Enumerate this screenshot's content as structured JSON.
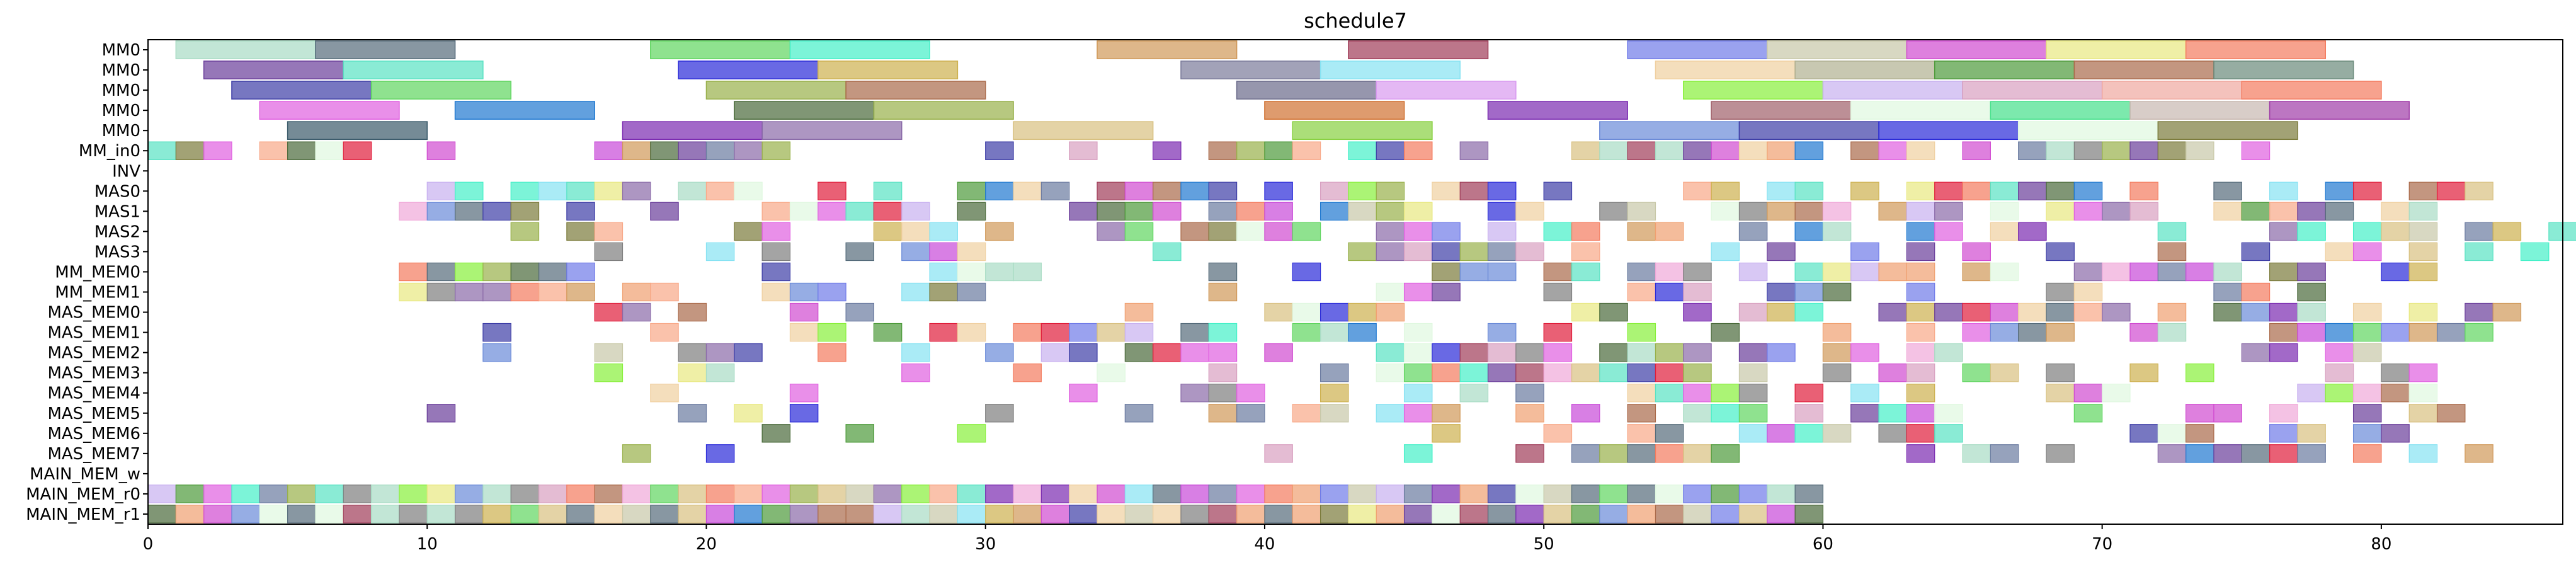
{
  "chart_data": {
    "type": "gantt",
    "title": "schedule7",
    "xlabel": "",
    "ylabel": "",
    "xlim": [
      0,
      86.5
    ],
    "xticks": [
      0,
      10,
      20,
      30,
      40,
      50,
      60,
      70,
      80
    ],
    "grid": false,
    "legend": "none",
    "rows": [
      "MM0",
      "MM0",
      "MM0",
      "MM0",
      "MM0",
      "MM_in0",
      "INV",
      "MAS0",
      "MAS1",
      "MAS2",
      "MAS3",
      "MM_MEM0",
      "MM_MEM1",
      "MAS_MEM0",
      "MAS_MEM1",
      "MAS_MEM2",
      "MAS_MEM3",
      "MAS_MEM4",
      "MAS_MEM5",
      "MAS_MEM6",
      "MAS_MEM7",
      "MAIN_MEM_w",
      "MAIN_MEM_r0",
      "MAIN_MEM_r1"
    ],
    "palette": [
      "#a8dcc4",
      "#556b7a",
      "#5fd55f",
      "#44f0c8",
      "#d09858",
      "#a03c58",
      "#6f7ae8",
      "#c8c8a8",
      "#d04ad0",
      "#e8e880",
      "#f47b5e",
      "#6a3d9a",
      "#59e2c3",
      "#2a2ad8",
      "#cdb04e",
      "#3d3da6",
      "#8a6aa8",
      "#aa6a4a",
      "#86e2f2",
      "#f0d0a0",
      "#88ef3a",
      "#4d9a3a",
      "#c8b0f0",
      "#e01c3a",
      "#f0a8d8",
      "#7e7e7e",
      "#e060e0",
      "#1f78d0",
      "#f8a888",
      "#4a6a3a",
      "#7a2ab0",
      "#e0f8e0",
      "#98b04a",
      "#f0a070",
      "#c848d8",
      "#6a8ad8",
      "#6a7aa0",
      "#d8c080",
      "#d8a0c0",
      "#7a7a3a"
    ],
    "bars": [
      {
        "row": 0,
        "start": 1,
        "dur": 5,
        "color": "#a8dcc4"
      },
      {
        "row": 0,
        "start": 6,
        "dur": 5,
        "color": "#556b7a"
      },
      {
        "row": 0,
        "start": 18,
        "dur": 5,
        "color": "#5fd55f"
      },
      {
        "row": 0,
        "start": 23,
        "dur": 5,
        "color": "#44f0c8"
      },
      {
        "row": 0,
        "start": 34,
        "dur": 5,
        "color": "#d09858"
      },
      {
        "row": 0,
        "start": 43,
        "dur": 5,
        "color": "#a03c58"
      },
      {
        "row": 0,
        "start": 53,
        "dur": 5,
        "color": "#6f7ae8"
      },
      {
        "row": 0,
        "start": 58,
        "dur": 5,
        "color": "#c8c8a8"
      },
      {
        "row": 0,
        "start": 63,
        "dur": 5,
        "color": "#d04ad0"
      },
      {
        "row": 0,
        "start": 68,
        "dur": 5,
        "color": "#e8e880"
      },
      {
        "row": 0,
        "start": 73,
        "dur": 5,
        "color": "#f47b5e"
      },
      {
        "row": 1,
        "start": 2,
        "dur": 5,
        "color": "#6a3d9a"
      },
      {
        "row": 1,
        "start": 7,
        "dur": 5,
        "color": "#59e2c3"
      },
      {
        "row": 1,
        "start": 19,
        "dur": 5,
        "color": "#2a2ad8"
      },
      {
        "row": 1,
        "start": 24,
        "dur": 5,
        "color": "#cdb04e"
      },
      {
        "row": 1,
        "start": 37,
        "dur": 5,
        "color": "#7a7a9a"
      },
      {
        "row": 1,
        "start": 42,
        "dur": 5,
        "color": "#86e2f2"
      },
      {
        "row": 1,
        "start": 54,
        "dur": 5,
        "color": "#f0d0a0"
      },
      {
        "row": 1,
        "start": 59,
        "dur": 5,
        "color": "#b0b090"
      },
      {
        "row": 1,
        "start": 64,
        "dur": 5,
        "color": "#4d9a3a"
      },
      {
        "row": 1,
        "start": 69,
        "dur": 5,
        "color": "#aa6a4a"
      },
      {
        "row": 1,
        "start": 74,
        "dur": 5,
        "color": "#6a8a7a"
      },
      {
        "row": 2,
        "start": 3,
        "dur": 5,
        "color": "#3d3da6"
      },
      {
        "row": 2,
        "start": 8,
        "dur": 5,
        "color": "#5fd55f"
      },
      {
        "row": 2,
        "start": 20,
        "dur": 5,
        "color": "#98b04a"
      },
      {
        "row": 2,
        "start": 25,
        "dur": 5,
        "color": "#aa6a4a"
      },
      {
        "row": 2,
        "start": 39,
        "dur": 5,
        "color": "#6a6a8a"
      },
      {
        "row": 2,
        "start": 44,
        "dur": 5,
        "color": "#d89af0"
      },
      {
        "row": 2,
        "start": 55,
        "dur": 5,
        "color": "#88ef3a"
      },
      {
        "row": 2,
        "start": 60,
        "dur": 5,
        "color": "#c8b0f0"
      },
      {
        "row": 2,
        "start": 65,
        "dur": 5,
        "color": "#d8a0c0"
      },
      {
        "row": 2,
        "start": 70,
        "dur": 5,
        "color": "#f0a8a0"
      },
      {
        "row": 2,
        "start": 75,
        "dur": 5,
        "color": "#f47b5e"
      },
      {
        "row": 3,
        "start": 4,
        "dur": 5,
        "color": "#e060e0"
      },
      {
        "row": 3,
        "start": 11,
        "dur": 5,
        "color": "#1f78d0"
      },
      {
        "row": 3,
        "start": 21,
        "dur": 5,
        "color": "#4a6a3a"
      },
      {
        "row": 3,
        "start": 26,
        "dur": 5,
        "color": "#98b04a"
      },
      {
        "row": 3,
        "start": 40,
        "dur": 5,
        "color": "#d07030"
      },
      {
        "row": 3,
        "start": 48,
        "dur": 5,
        "color": "#7a2ab0"
      },
      {
        "row": 3,
        "start": 56,
        "dur": 5,
        "color": "#a0606a"
      },
      {
        "row": 3,
        "start": 61,
        "dur": 5,
        "color": "#e0f8e0"
      },
      {
        "row": 3,
        "start": 66,
        "dur": 5,
        "color": "#44e08a"
      },
      {
        "row": 3,
        "start": 71,
        "dur": 5,
        "color": "#c8b8b0"
      },
      {
        "row": 3,
        "start": 76,
        "dur": 5,
        "color": "#a03ca8"
      },
      {
        "row": 4,
        "start": 5,
        "dur": 5,
        "color": "#3a5a6a"
      },
      {
        "row": 4,
        "start": 17,
        "dur": 5,
        "color": "#7a2ab0"
      },
      {
        "row": 4,
        "start": 22,
        "dur": 5,
        "color": "#8a6aa8"
      },
      {
        "row": 4,
        "start": 31,
        "dur": 5,
        "color": "#d8c080"
      },
      {
        "row": 4,
        "start": 41,
        "dur": 5,
        "color": "#88d040"
      },
      {
        "row": 4,
        "start": 52,
        "dur": 5,
        "color": "#6a8ad8"
      },
      {
        "row": 4,
        "start": 57,
        "dur": 5,
        "color": "#3d3da6"
      },
      {
        "row": 4,
        "start": 62,
        "dur": 5,
        "color": "#2a2ad8"
      },
      {
        "row": 4,
        "start": 67,
        "dur": 5,
        "color": "#e0f8e0"
      },
      {
        "row": 4,
        "start": 72,
        "dur": 5,
        "color": "#7a7a3a"
      }
    ]
  }
}
